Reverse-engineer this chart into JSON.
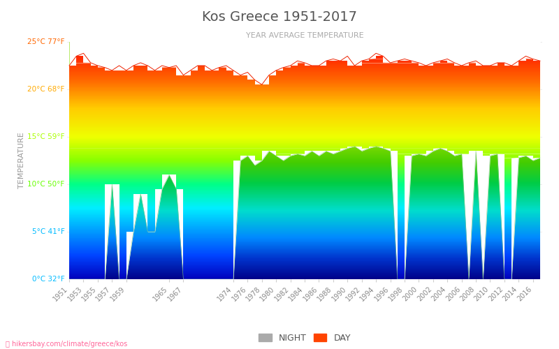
{
  "title": "Kos Greece 1951-2017",
  "subtitle": "YEAR AVERAGE TEMPERATURE",
  "ylabel": "TEMPERATURE",
  "xlabel_url": "hikersbay.com/climate/greece/kos",
  "ymin": 0,
  "ymax": 25,
  "yticks": [
    0,
    5,
    10,
    15,
    20,
    25
  ],
  "ytick_labels": [
    "0°C 32°F",
    "5°C 41°F",
    "10°C 50°F",
    "15°C 59°F",
    "20°C 68°F",
    "25°C 77°F"
  ],
  "ytick_colors": [
    "#00bbff",
    "#00bbff",
    "#66ff00",
    "#aaff00",
    "#ffaa00",
    "#ff6600"
  ],
  "legend_night_color": "#aaaaaa",
  "legend_day_color": "#ff4400",
  "background_color": "#ffffff",
  "title_color": "#555555",
  "subtitle_color": "#aaaaaa",
  "day_rainbow_stops": [
    [
      0.0,
      "#0000bb"
    ],
    [
      0.1,
      "#0044ff"
    ],
    [
      0.2,
      "#0099ff"
    ],
    [
      0.3,
      "#00eeff"
    ],
    [
      0.4,
      "#00ff88"
    ],
    [
      0.5,
      "#88ff00"
    ],
    [
      0.6,
      "#eeff00"
    ],
    [
      0.72,
      "#ffcc00"
    ],
    [
      0.84,
      "#ff6600"
    ],
    [
      1.0,
      "#ff0000"
    ]
  ],
  "night_rainbow_stops": [
    [
      0.0,
      "#000088"
    ],
    [
      0.15,
      "#0033cc"
    ],
    [
      0.3,
      "#0088ff"
    ],
    [
      0.5,
      "#00ddcc"
    ],
    [
      0.7,
      "#00cc44"
    ],
    [
      0.85,
      "#44cc00"
    ],
    [
      1.0,
      "#88dd00"
    ]
  ],
  "years": [
    1951,
    1952,
    1953,
    1954,
    1955,
    1956,
    1957,
    1958,
    1959,
    1960,
    1961,
    1962,
    1963,
    1964,
    1965,
    1966,
    1967,
    1968,
    1969,
    1970,
    1971,
    1972,
    1973,
    1974,
    1975,
    1976,
    1977,
    1978,
    1979,
    1980,
    1981,
    1982,
    1983,
    1984,
    1985,
    1986,
    1987,
    1988,
    1989,
    1990,
    1991,
    1992,
    1993,
    1994,
    1995,
    1996,
    1997,
    1998,
    1999,
    2000,
    2001,
    2002,
    2003,
    2004,
    2005,
    2006,
    2007,
    2008,
    2009,
    2010,
    2011,
    2012,
    2013,
    2014,
    2015,
    2016,
    2017
  ],
  "day_temps": [
    22.5,
    23.5,
    23.8,
    22.8,
    22.5,
    22.3,
    22.0,
    22.5,
    22.0,
    22.5,
    22.8,
    22.5,
    22.0,
    22.5,
    22.3,
    22.5,
    21.5,
    22.0,
    22.5,
    22.5,
    22.0,
    22.3,
    22.5,
    22.0,
    21.5,
    21.8,
    21.0,
    20.5,
    21.5,
    22.0,
    22.3,
    22.5,
    23.0,
    22.8,
    22.5,
    22.5,
    23.0,
    23.2,
    23.0,
    23.5,
    22.5,
    23.0,
    23.2,
    23.8,
    23.5,
    22.8,
    23.0,
    23.2,
    23.0,
    22.8,
    22.5,
    22.8,
    23.0,
    23.2,
    22.8,
    22.5,
    22.8,
    23.0,
    22.5,
    22.5,
    22.8,
    22.8,
    22.5,
    23.0,
    23.5,
    23.2,
    23.0
  ],
  "night_temps": [
    0.0,
    0.0,
    0.0,
    0.0,
    0.0,
    0.0,
    10.0,
    0.0,
    0.0,
    5.0,
    9.0,
    5.0,
    5.0,
    9.5,
    11.0,
    9.5,
    0.0,
    0.0,
    0.0,
    0.0,
    0.0,
    0.0,
    0.0,
    0.0,
    12.5,
    13.0,
    12.0,
    12.5,
    13.5,
    13.0,
    12.5,
    13.0,
    13.2,
    13.0,
    13.5,
    13.0,
    13.5,
    13.2,
    13.5,
    13.8,
    14.0,
    13.5,
    13.8,
    14.0,
    13.8,
    13.5,
    0.0,
    0.0,
    13.0,
    13.2,
    13.0,
    13.5,
    13.8,
    13.5,
    13.0,
    13.2,
    0.0,
    13.5,
    0.0,
    13.0,
    13.2,
    0.0,
    0.0,
    12.8,
    13.0,
    12.5,
    12.8
  ],
  "xtick_years": [
    1951,
    1953,
    1955,
    1957,
    1959,
    1965,
    1967,
    1974,
    1976,
    1978,
    1980,
    1982,
    1984,
    1986,
    1988,
    1990,
    1992,
    1994,
    1996,
    1998,
    2000,
    2002,
    2004,
    2006,
    2008,
    2010,
    2012,
    2014,
    2016
  ]
}
